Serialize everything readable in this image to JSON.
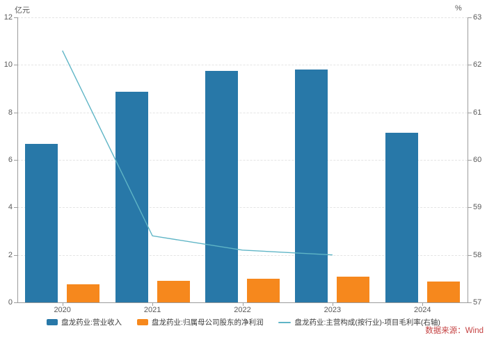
{
  "chart_data": {
    "type": "bar",
    "title": "",
    "categories": [
      "2020",
      "2021",
      "2022",
      "2023",
      "2024"
    ],
    "series": [
      {
        "name": "盘龙药业:营业收入",
        "type": "bar",
        "axis": "left",
        "color": "#2878a8",
        "values": [
          6.68,
          8.86,
          9.74,
          9.8,
          7.15
        ]
      },
      {
        "name": "盘龙药业:归属母公司股东的净利润",
        "type": "bar",
        "axis": "left",
        "color": "#f6881d",
        "values": [
          0.77,
          0.92,
          1.0,
          1.09,
          0.88
        ]
      },
      {
        "name": "盘龙药业:主营构成(按行业)-项目毛利率(右轴)",
        "type": "line",
        "axis": "right",
        "color": "#5fb5c6",
        "values": [
          62.3,
          58.4,
          58.1,
          58.0,
          null
        ]
      }
    ],
    "left_axis": {
      "unit": "亿元",
      "min": 0,
      "max": 12,
      "ticks": [
        12,
        10,
        8,
        6,
        4,
        2,
        0
      ]
    },
    "right_axis": {
      "unit": "%",
      "min": 57,
      "max": 63,
      "ticks": [
        63,
        62,
        61,
        60,
        59,
        58,
        57
      ]
    },
    "grid": "horizontal dashed, on",
    "legend_position": "bottom",
    "source": "数据来源：Wind"
  },
  "colors": {
    "bar_revenue": "#2878a8",
    "bar_profit": "#f6881d",
    "line_margin": "#5fb5c6",
    "gridline": "#e4e4e4",
    "axis": "#9b9b9b",
    "tick_text": "#595959",
    "legend_text": "#3c3c3c",
    "source_text": "#c54242"
  }
}
